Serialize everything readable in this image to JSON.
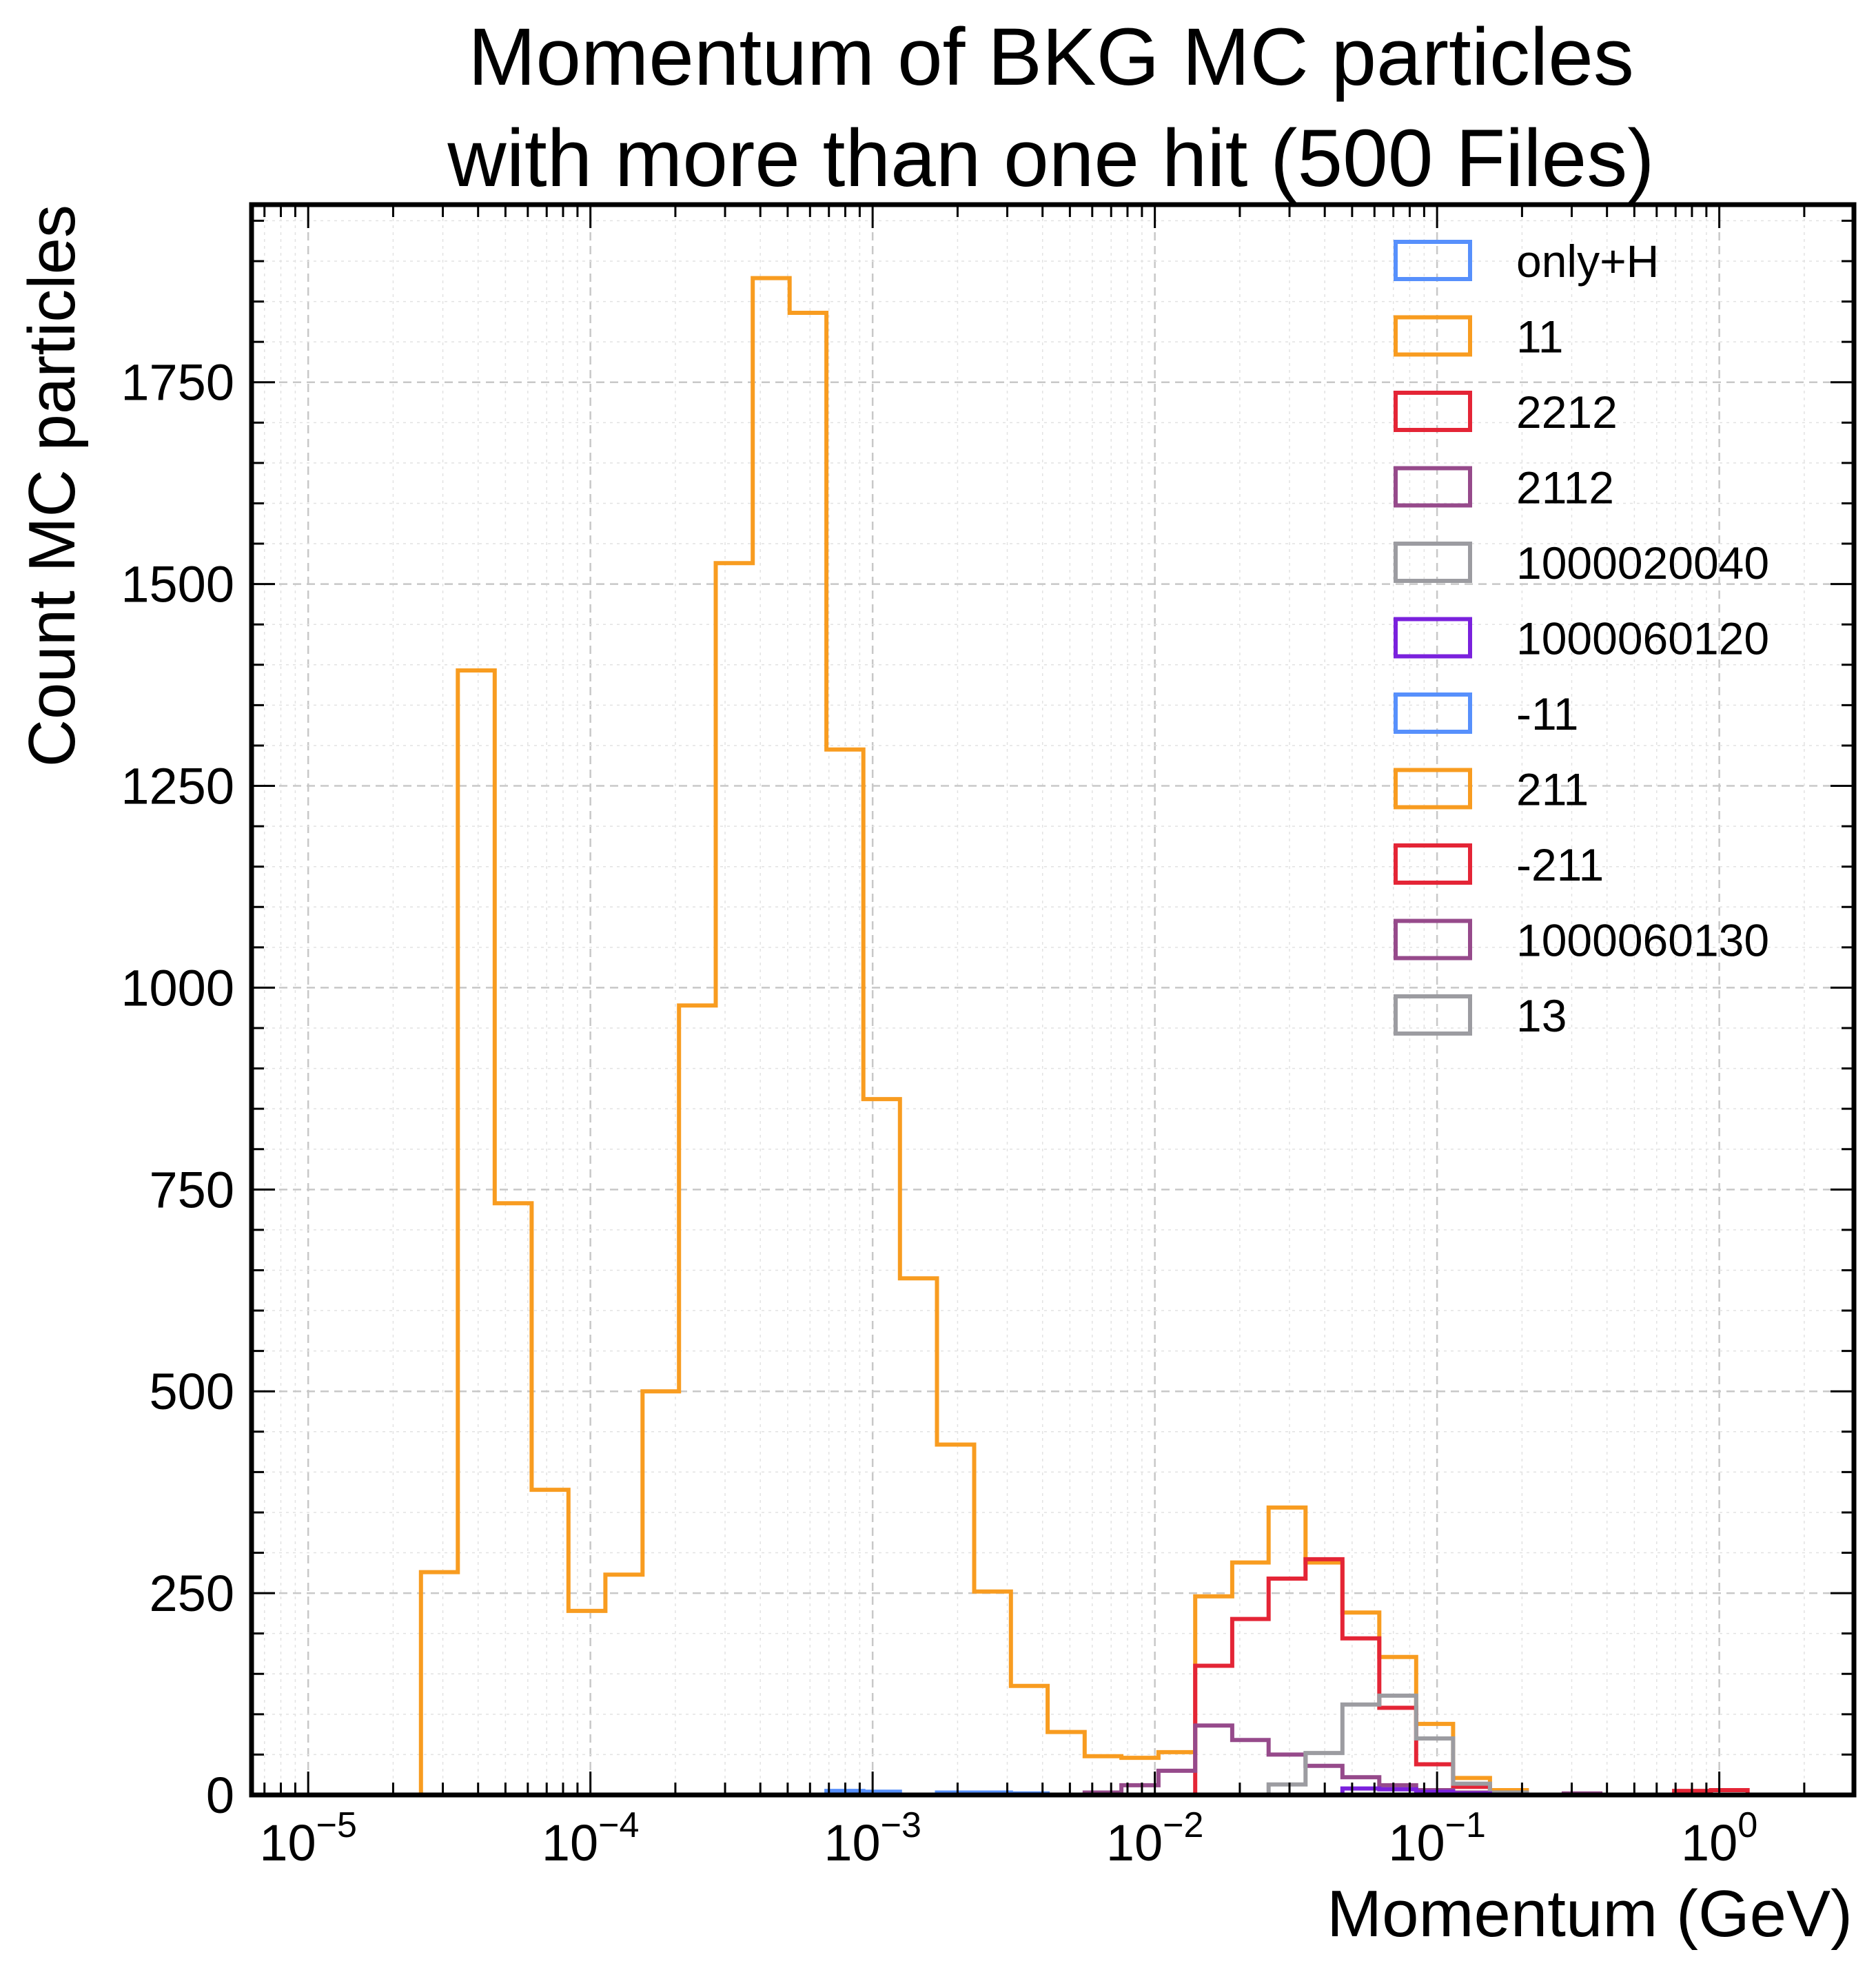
{
  "chart_data": {
    "type": "histogram-step",
    "title_lines": [
      "Momentum of BKG MC particles",
      "with more than one hit (500 Files)"
    ],
    "xlabel": "Momentum (GeV)",
    "ylabel": "Count MC particles",
    "x_scale": "log",
    "xlim": [
      6.3e-06,
      3.0
    ],
    "ylim": [
      0,
      1970
    ],
    "x_ticks": [
      {
        "value": 1e-05,
        "base": "10",
        "exp": "−5"
      },
      {
        "value": 0.0001,
        "base": "10",
        "exp": "−4"
      },
      {
        "value": 0.001,
        "base": "10",
        "exp": "−3"
      },
      {
        "value": 0.01,
        "base": "10",
        "exp": "−2"
      },
      {
        "value": 0.1,
        "base": "10",
        "exp": "−1"
      },
      {
        "value": 1,
        "base": "10",
        "exp": "0"
      }
    ],
    "y_ticks": [
      {
        "value": 0,
        "label": "0"
      },
      {
        "value": 250,
        "label": "250"
      },
      {
        "value": 500,
        "label": "500"
      },
      {
        "value": 750,
        "label": "750"
      },
      {
        "value": 1000,
        "label": "1000"
      },
      {
        "value": 1250,
        "label": "1250"
      },
      {
        "value": 1500,
        "label": "1500"
      },
      {
        "value": 1750,
        "label": "1750"
      }
    ],
    "grid": true,
    "legend_position": "top-right",
    "bin_edges": [
      2.51e-05,
      3.39e-05,
      4.58e-05,
      6.19e-05,
      8.36e-05,
      0.000113,
      0.000153,
      0.000206,
      0.000278,
      0.000376,
      0.000508,
      0.000686,
      0.000927,
      0.00125,
      0.00169,
      0.00229,
      0.00309,
      0.00417,
      0.00564,
      0.00761,
      0.0103,
      0.0139,
      0.0188,
      0.0253,
      0.0342,
      0.0462,
      0.0624,
      0.0843,
      0.114,
      0.154,
      0.208,
      0.281,
      0.379,
      0.512,
      0.692,
      0.934,
      1.26,
      1.71
    ],
    "series": [
      {
        "name": "only+H",
        "color": "#5790fc",
        "values": [
          0,
          0,
          0,
          0,
          0,
          0,
          0,
          0,
          0,
          0,
          0,
          5,
          4,
          0,
          3,
          3,
          2,
          0,
          0,
          0,
          0,
          0,
          0,
          0,
          0,
          0,
          0,
          0,
          0,
          0,
          0,
          0,
          0,
          0,
          0,
          0,
          0
        ]
      },
      {
        "name": "11",
        "color": "#f89c20",
        "values": [
          276,
          1393,
          733,
          378,
          228,
          273,
          500,
          978,
          1526,
          1879,
          1836,
          1295,
          862,
          640,
          434,
          252,
          135,
          78,
          48,
          46,
          53,
          246,
          288,
          356,
          288,
          226,
          171,
          88,
          21,
          6,
          0,
          0,
          0,
          0,
          0,
          0,
          0
        ]
      },
      {
        "name": "2212",
        "color": "#e42536",
        "values": [
          0,
          0,
          0,
          0,
          0,
          0,
          0,
          0,
          0,
          0,
          0,
          0,
          0,
          0,
          0,
          0,
          0,
          0,
          0,
          0,
          0,
          160,
          218,
          268,
          292,
          194,
          108,
          38,
          10,
          3,
          0,
          0,
          0,
          0,
          5,
          6,
          0
        ]
      },
      {
        "name": "2112",
        "color": "#964a8b",
        "values": [
          0,
          0,
          0,
          0,
          0,
          0,
          0,
          0,
          0,
          0,
          0,
          0,
          0,
          0,
          0,
          0,
          0,
          0,
          3,
          12,
          30,
          86,
          68,
          50,
          36,
          22,
          12,
          6,
          3,
          2,
          0,
          2,
          0,
          0,
          0,
          0,
          0
        ]
      },
      {
        "name": "1000020040",
        "color": "#9c9ca1",
        "values": [
          0,
          0,
          0,
          0,
          0,
          0,
          0,
          0,
          0,
          0,
          0,
          0,
          0,
          0,
          0,
          0,
          0,
          0,
          0,
          0,
          0,
          0,
          0,
          13,
          52,
          112,
          123,
          70,
          14,
          3,
          0,
          0,
          0,
          0,
          0,
          0,
          0
        ]
      },
      {
        "name": "1000060120",
        "color": "#7a21dd",
        "values": [
          0,
          0,
          0,
          0,
          0,
          0,
          0,
          0,
          0,
          0,
          0,
          0,
          0,
          0,
          0,
          0,
          0,
          0,
          0,
          0,
          0,
          0,
          0,
          0,
          0,
          8,
          7,
          4,
          2,
          0,
          0,
          0,
          0,
          0,
          0,
          0,
          0
        ]
      },
      {
        "name": "-11",
        "color": "#5790fc",
        "values": []
      },
      {
        "name": "211",
        "color": "#f89c20",
        "values": []
      },
      {
        "name": "-211",
        "color": "#e42536",
        "values": []
      },
      {
        "name": "1000060130",
        "color": "#964a8b",
        "values": []
      },
      {
        "name": "13",
        "color": "#9c9ca1",
        "values": []
      }
    ]
  }
}
